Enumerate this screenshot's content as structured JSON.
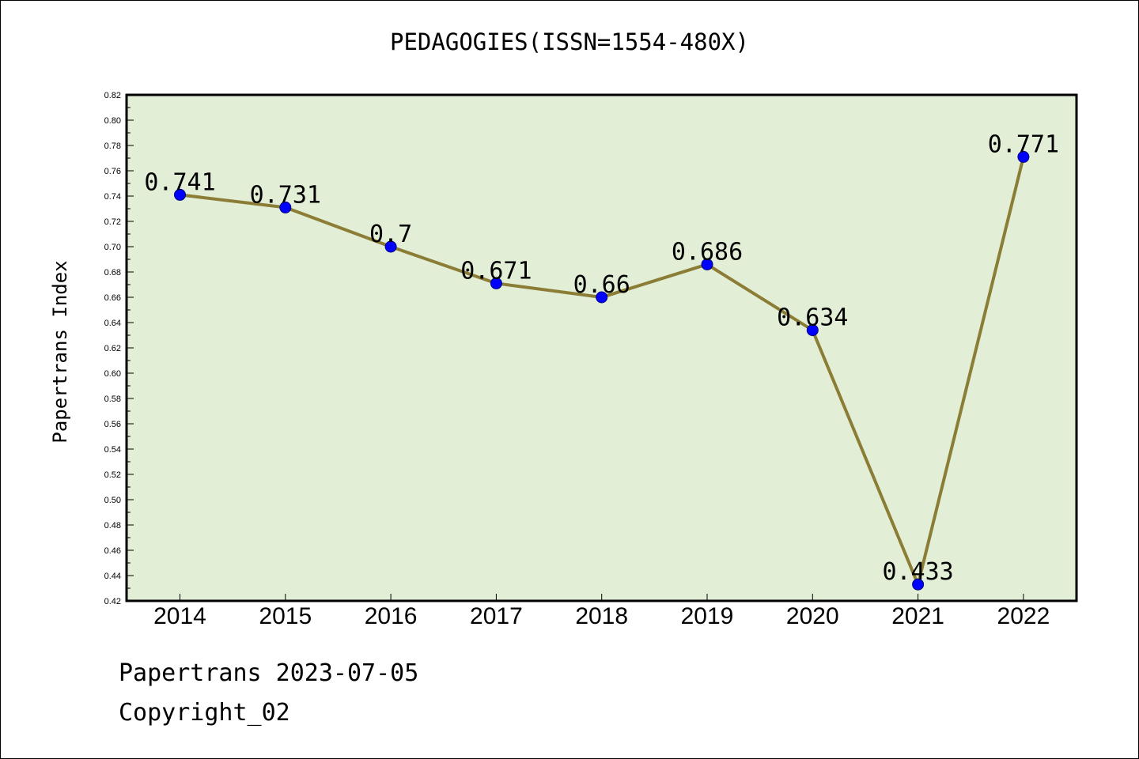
{
  "chart_data": {
    "type": "line",
    "title": "PEDAGOGIES(ISSN=1554-480X)",
    "xlabel": "",
    "ylabel": "Papertrans Index",
    "categories": [
      "2014",
      "2015",
      "2016",
      "2017",
      "2018",
      "2019",
      "2020",
      "2021",
      "2022"
    ],
    "values": [
      0.741,
      0.731,
      0.7,
      0.671,
      0.66,
      0.686,
      0.634,
      0.433,
      0.771
    ],
    "data_labels": [
      "0.741",
      "0.731",
      "0.7",
      "0.671",
      "0.66",
      "0.686",
      "0.634",
      "0.433",
      "0.771"
    ],
    "ylim": [
      0.42,
      0.82
    ],
    "yticks": [
      "0.42",
      "0.44",
      "0.46",
      "0.48",
      "0.50",
      "0.52",
      "0.54",
      "0.56",
      "0.58",
      "0.60",
      "0.62",
      "0.64",
      "0.66",
      "0.68",
      "0.70",
      "0.72",
      "0.74",
      "0.76",
      "0.78",
      "0.80",
      "0.82"
    ],
    "grid": false,
    "legend": "none",
    "colors": {
      "plot_background": "#e2efd6",
      "line": "#8b7d35",
      "marker_fill": "#0000ff",
      "marker_edge": "#000080"
    }
  },
  "footer": {
    "line1": "Papertrans 2023-07-05",
    "line2": "Copyright_02"
  }
}
